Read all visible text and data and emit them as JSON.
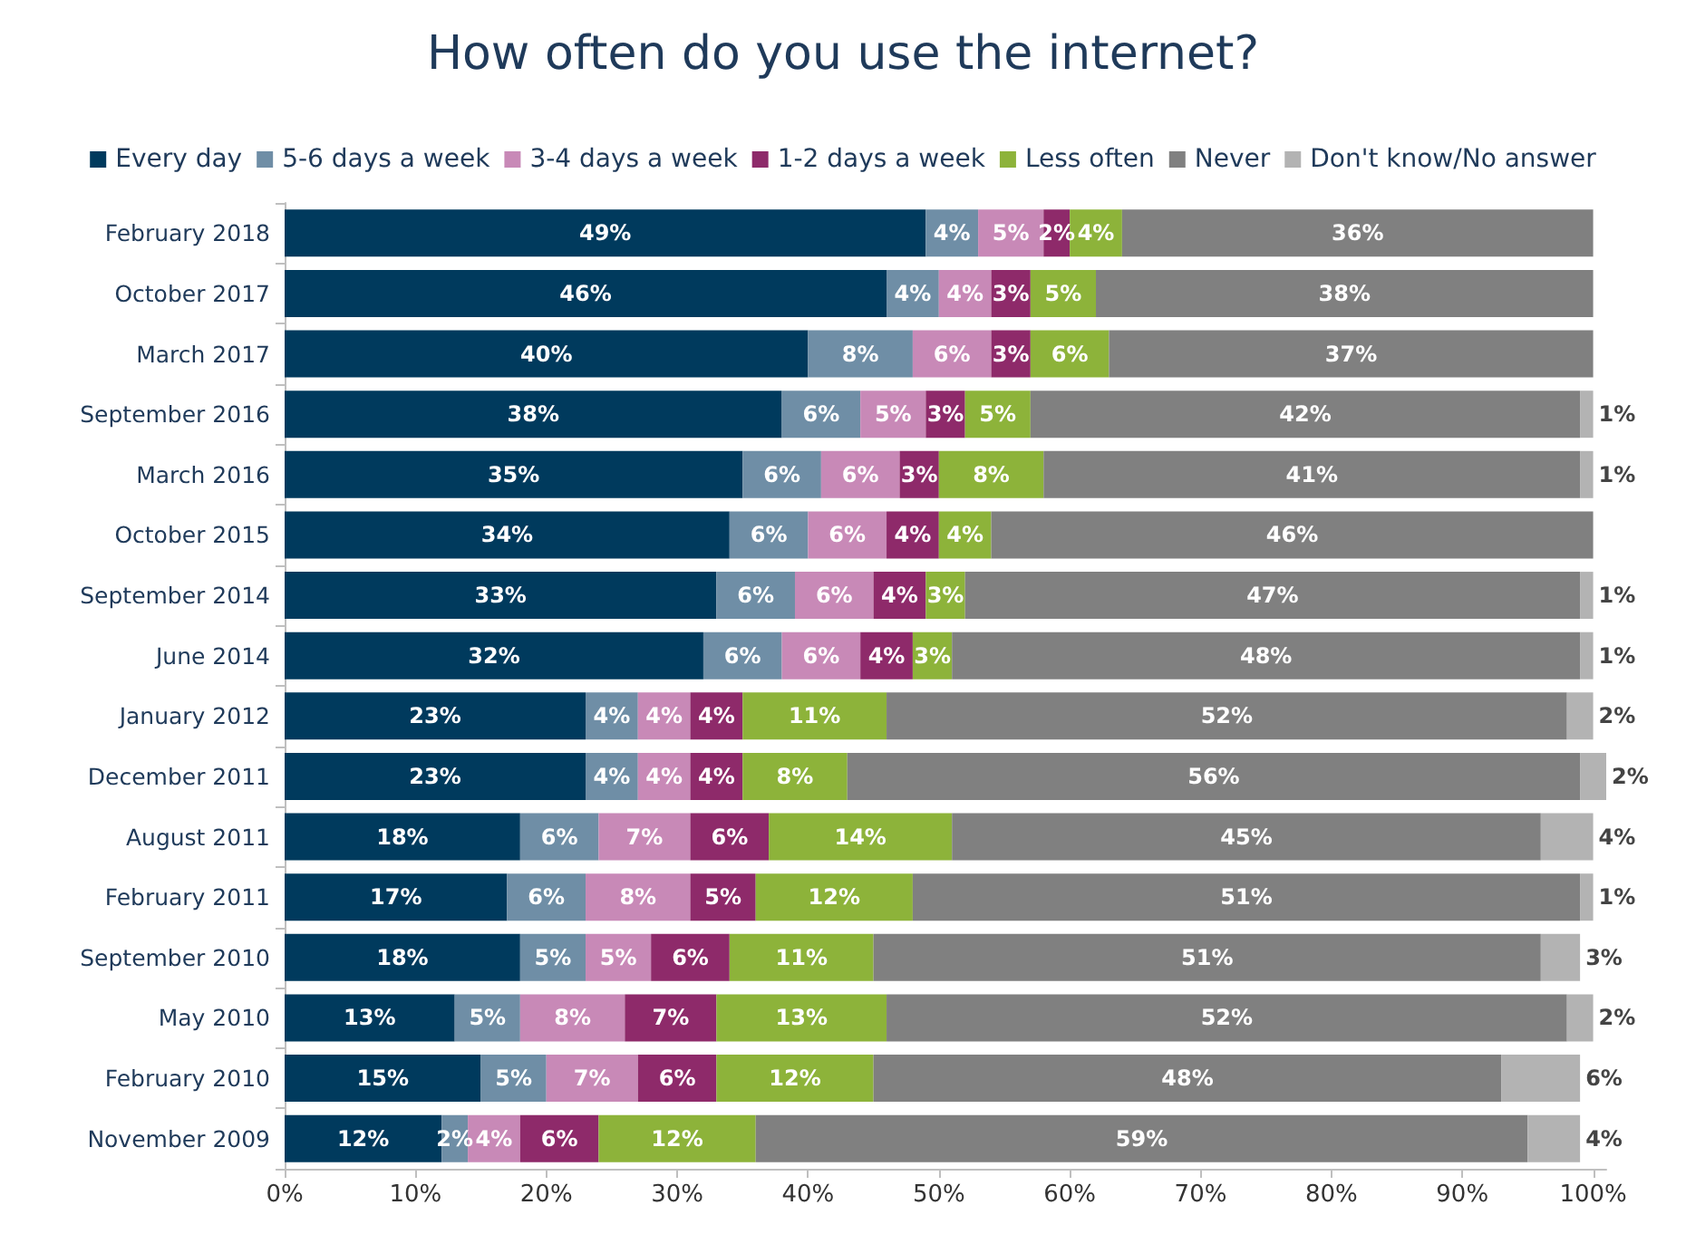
{
  "chart_data": {
    "type": "bar",
    "orientation": "horizontal",
    "stacked": true,
    "title": "How often do you use the internet?",
    "categories": [
      "February 2018",
      "October 2017",
      "March 2017",
      "September 2016",
      "March 2016",
      "October 2015",
      "September 2014",
      "June 2014",
      "January 2012",
      "December 2011",
      "August 2011",
      "February 2011",
      "September 2010",
      "May 2010",
      "February 2010",
      "November 2009"
    ],
    "series": [
      {
        "name": "Every day",
        "color": "#003a5d",
        "values": [
          49,
          46,
          40,
          38,
          35,
          34,
          33,
          32,
          23,
          23,
          18,
          17,
          18,
          13,
          15,
          12
        ],
        "value_labels": [
          "49%",
          "46%",
          "40%",
          "38%",
          "35%",
          "34%",
          "33%",
          "32%",
          "23%",
          "23%",
          "18%",
          "17%",
          "18%",
          "13%",
          "15%",
          "12%"
        ]
      },
      {
        "name": "5-6 days a week",
        "color": "#6f8ea6",
        "values": [
          4,
          4,
          8,
          6,
          6,
          6,
          6,
          6,
          4,
          4,
          6,
          6,
          5,
          5,
          5,
          2
        ],
        "value_labels": [
          "4%",
          "4%",
          "8%",
          "6%",
          "6%",
          "6%",
          "6%",
          "6%",
          "4%",
          "4%",
          "6%",
          "6%",
          "5%",
          "5%",
          "5%",
          "2%"
        ]
      },
      {
        "name": "3-4 days a week",
        "color": "#c889b7",
        "values": [
          5,
          4,
          6,
          5,
          6,
          6,
          6,
          6,
          4,
          4,
          7,
          8,
          5,
          8,
          7,
          4
        ],
        "value_labels": [
          "5%",
          "4%",
          "6%",
          "5%",
          "6%",
          "6%",
          "6%",
          "6%",
          "4%",
          "4%",
          "7%",
          "8%",
          "5%",
          "8%",
          "7%",
          "4%"
        ]
      },
      {
        "name": "1-2 days a week",
        "color": "#8e2a6a",
        "values": [
          2,
          3,
          3,
          3,
          3,
          4,
          4,
          4,
          4,
          4,
          6,
          5,
          6,
          7,
          6,
          6
        ],
        "value_labels": [
          "2%",
          "3%",
          "3%",
          "3%",
          "3%",
          "4%",
          "4%",
          "4%",
          "4%",
          "4%",
          "6%",
          "5%",
          "6%",
          "7%",
          "6%",
          "6%"
        ]
      },
      {
        "name": "Less often",
        "color": "#8db33a",
        "values": [
          4,
          5,
          6,
          5,
          8,
          4,
          3,
          3,
          11,
          8,
          14,
          12,
          11,
          13,
          12,
          12
        ],
        "value_labels": [
          "4%",
          "5%",
          "6%",
          "5%",
          "8%",
          "4%",
          "3%",
          "3%",
          "11%",
          "8%",
          "14%",
          "12%",
          "11%",
          "13%",
          "12%",
          "12%"
        ]
      },
      {
        "name": "Never",
        "color": "#808080",
        "values": [
          36,
          38,
          37,
          42,
          41,
          46,
          47,
          48,
          52,
          56,
          45,
          51,
          51,
          52,
          48,
          59
        ],
        "value_labels": [
          "36%",
          "38%",
          "37%",
          "42%",
          "41%",
          "46%",
          "47%",
          "48%",
          "52%",
          "56%",
          "45%",
          "51%",
          "51%",
          "52%",
          "48%",
          "59%"
        ]
      },
      {
        "name": "Don't know/No answer",
        "color": "#b3b3b3",
        "values": [
          null,
          null,
          null,
          1,
          1,
          null,
          1,
          1,
          2,
          2,
          4,
          1,
          3,
          2,
          6,
          4
        ],
        "value_labels": [
          null,
          null,
          null,
          "1%",
          "1%",
          null,
          "1%",
          "1%",
          "2%",
          "2%",
          "4%",
          "1%",
          "3%",
          "2%",
          "6%",
          "4%"
        ]
      }
    ],
    "xlim": [
      0,
      101
    ],
    "xticks": [
      {
        "value": 0,
        "label": "0%"
      },
      {
        "value": 10,
        "label": "10%"
      },
      {
        "value": 20,
        "label": "20%"
      },
      {
        "value": 30,
        "label": "30%"
      },
      {
        "value": 40,
        "label": "40%"
      },
      {
        "value": 50,
        "label": "50%"
      },
      {
        "value": 60,
        "label": "60%"
      },
      {
        "value": 70,
        "label": "70%"
      },
      {
        "value": 80,
        "label": "80%"
      },
      {
        "value": 90,
        "label": "90%"
      },
      {
        "value": 100,
        "label": "100%"
      }
    ],
    "grid": false,
    "legend": "top"
  }
}
